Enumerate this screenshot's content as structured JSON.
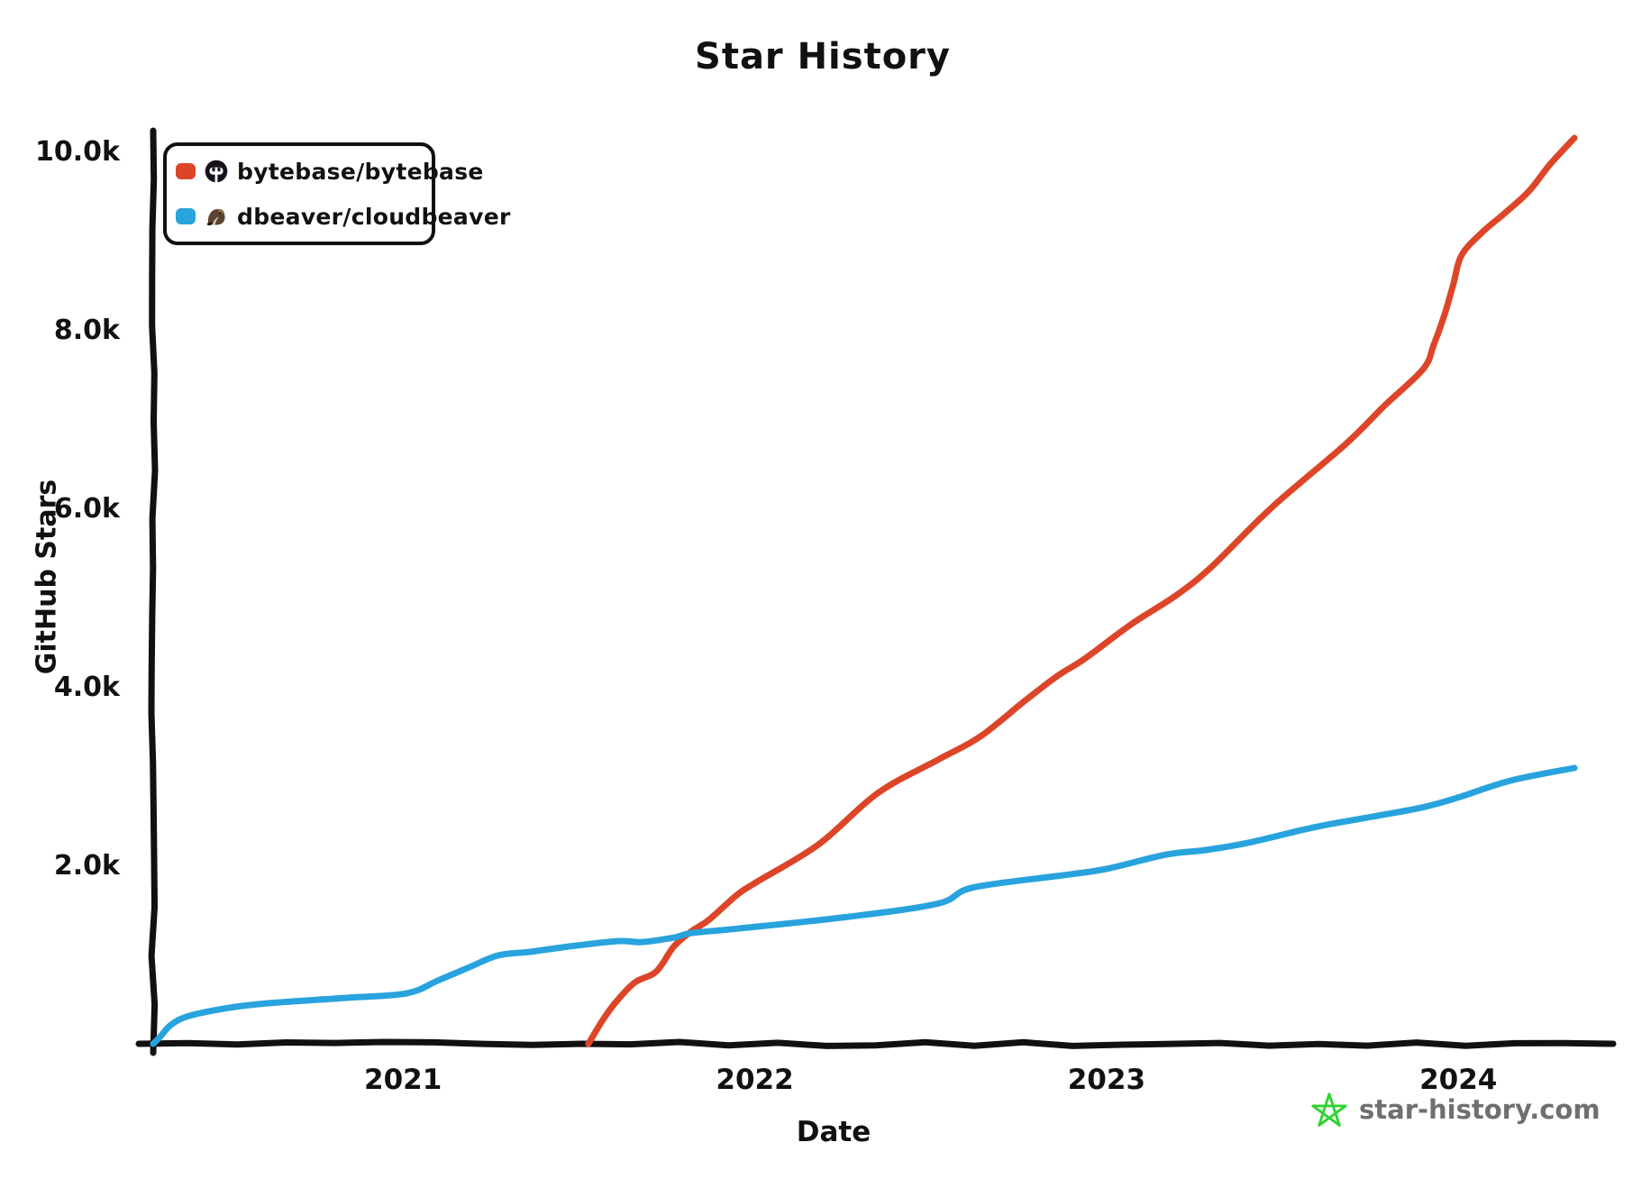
{
  "title": "Star History",
  "legend": {
    "items": [
      {
        "label": "bytebase/bytebase",
        "color": "#dd4528",
        "avatar": "bytebase-logo"
      },
      {
        "label": "dbeaver/cloudbeaver",
        "color": "#28a3dd",
        "avatar": "dbeaver-beaver-logo"
      }
    ]
  },
  "watermark": {
    "text": "star-history.com",
    "star_color": "#2fd32f",
    "text_color": "#6f6f6f"
  },
  "colors": {
    "axis": "#111111",
    "background": "#ffffff"
  },
  "chart_data": {
    "type": "line",
    "title": "Star History",
    "xlabel": "Date",
    "ylabel": "GitHub Stars",
    "x_unit": "decimal_year",
    "xlim": [
      2020.29,
      2024.44
    ],
    "ylim": [
      0,
      10180
    ],
    "grid": false,
    "legend_position": "top-left",
    "x_ticks": [
      {
        "value": 2021,
        "label": "2021"
      },
      {
        "value": 2022,
        "label": "2022"
      },
      {
        "value": 2023,
        "label": "2023"
      },
      {
        "value": 2024,
        "label": "2024"
      }
    ],
    "y_ticks": [
      {
        "value": 2000,
        "label": "2.0k"
      },
      {
        "value": 4000,
        "label": "4.0k"
      },
      {
        "value": 6000,
        "label": "6.0k"
      },
      {
        "value": 8000,
        "label": "8.0k"
      },
      {
        "value": 10000,
        "label": "10.0k"
      }
    ],
    "series": [
      {
        "name": "bytebase/bytebase",
        "color": "#dd4528",
        "points": [
          [
            2021.527,
            0
          ],
          [
            2021.57,
            280
          ],
          [
            2021.61,
            490
          ],
          [
            2021.66,
            690
          ],
          [
            2021.72,
            810
          ],
          [
            2021.77,
            1090
          ],
          [
            2021.82,
            1260
          ],
          [
            2021.87,
            1390
          ],
          [
            2021.95,
            1670
          ],
          [
            2022.0,
            1800
          ],
          [
            2022.18,
            2230
          ],
          [
            2022.35,
            2810
          ],
          [
            2022.52,
            3180
          ],
          [
            2022.64,
            3440
          ],
          [
            2022.77,
            3850
          ],
          [
            2022.86,
            4120
          ],
          [
            2022.94,
            4320
          ],
          [
            2023.07,
            4700
          ],
          [
            2023.2,
            5030
          ],
          [
            2023.3,
            5350
          ],
          [
            2023.47,
            6010
          ],
          [
            2023.68,
            6720
          ],
          [
            2023.79,
            7150
          ],
          [
            2023.9,
            7560
          ],
          [
            2023.93,
            7830
          ],
          [
            2023.96,
            8160
          ],
          [
            2023.985,
            8500
          ],
          [
            2024.01,
            8840
          ],
          [
            2024.07,
            9100
          ],
          [
            2024.13,
            9300
          ],
          [
            2024.2,
            9550
          ],
          [
            2024.26,
            9850
          ],
          [
            2024.33,
            10150
          ]
        ]
      },
      {
        "name": "dbeaver/cloudbeaver",
        "color": "#28a3dd",
        "points": [
          [
            2020.29,
            0
          ],
          [
            2020.31,
            80
          ],
          [
            2020.34,
            210
          ],
          [
            2020.39,
            310
          ],
          [
            2020.5,
            400
          ],
          [
            2020.62,
            455
          ],
          [
            2020.84,
            515
          ],
          [
            2021.01,
            565
          ],
          [
            2021.1,
            710
          ],
          [
            2021.19,
            860
          ],
          [
            2021.27,
            990
          ],
          [
            2021.36,
            1030
          ],
          [
            2021.47,
            1090
          ],
          [
            2021.61,
            1150
          ],
          [
            2021.68,
            1140
          ],
          [
            2021.77,
            1190
          ],
          [
            2021.82,
            1240
          ],
          [
            2021.95,
            1290
          ],
          [
            2022.26,
            1420
          ],
          [
            2022.52,
            1570
          ],
          [
            2022.62,
            1750
          ],
          [
            2022.88,
            1890
          ],
          [
            2023.0,
            1960
          ],
          [
            2023.17,
            2120
          ],
          [
            2023.28,
            2170
          ],
          [
            2023.4,
            2250
          ],
          [
            2023.56,
            2400
          ],
          [
            2023.64,
            2465
          ],
          [
            2023.77,
            2555
          ],
          [
            2023.9,
            2650
          ],
          [
            2024.0,
            2760
          ],
          [
            2024.15,
            2950
          ],
          [
            2024.33,
            3090
          ]
        ]
      }
    ]
  }
}
